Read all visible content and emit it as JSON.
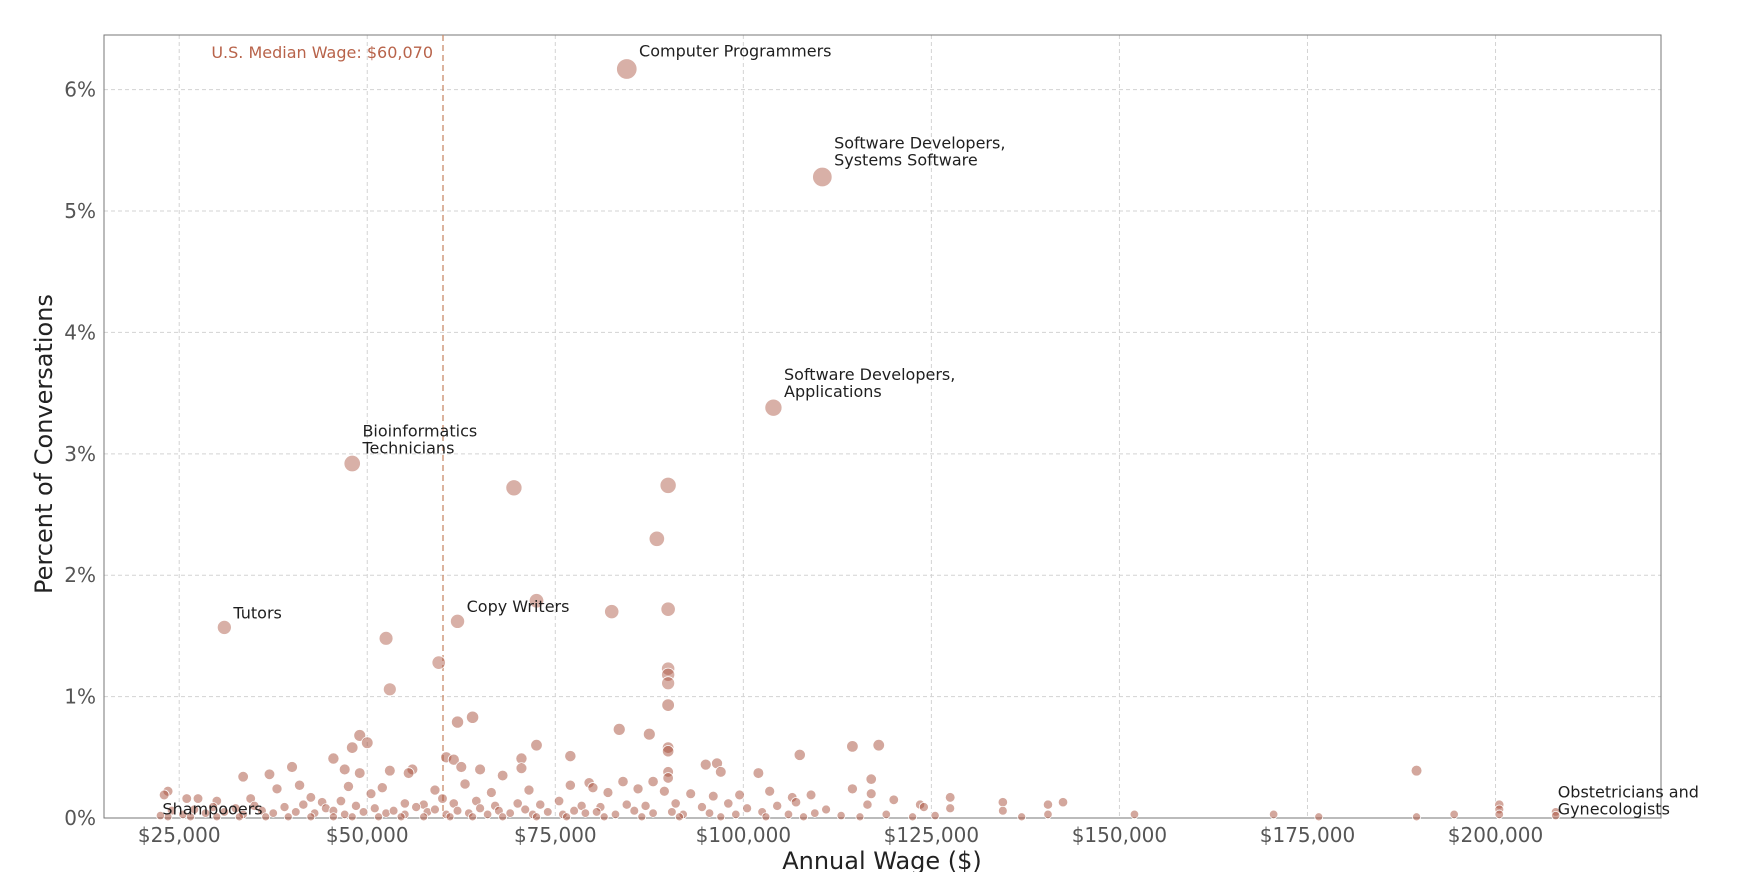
{
  "chart_data": {
    "type": "scatter",
    "xlabel": "Annual Wage ($)",
    "ylabel": "Percent of Conversations",
    "xlim": [
      15000,
      222000
    ],
    "ylim": [
      0,
      6.45
    ],
    "x_ticks": [
      25000,
      50000,
      75000,
      100000,
      125000,
      150000,
      175000,
      200000
    ],
    "x_tick_labels": [
      "$25,000",
      "$50,000",
      "$75,000",
      "$100,000",
      "$125,000",
      "$150,000",
      "$175,000",
      "$200,000"
    ],
    "y_ticks": [
      0,
      1,
      2,
      3,
      4,
      5,
      6
    ],
    "y_tick_labels": [
      "0%",
      "1%",
      "2%",
      "3%",
      "4%",
      "5%",
      "6%"
    ],
    "grid": true,
    "colors": {
      "point": "#a8503c",
      "median": "#c98b6a",
      "median_text": "#b8634a"
    },
    "median": {
      "x": 60070,
      "label": "U.S. Median Wage: $60,070"
    },
    "labeled_points": [
      {
        "x": 84500,
        "y": 6.17,
        "label": [
          "Computer Programmers"
        ]
      },
      {
        "x": 110500,
        "y": 5.28,
        "label": [
          "Software Developers,",
          "Systems Software"
        ]
      },
      {
        "x": 104000,
        "y": 3.38,
        "label": [
          "Software Developers,",
          "Applications"
        ]
      },
      {
        "x": 48000,
        "y": 2.92,
        "label": [
          "Bioinformatics",
          "Technicians"
        ]
      },
      {
        "x": 31000,
        "y": 1.57,
        "label": [
          "Tutors"
        ]
      },
      {
        "x": 62000,
        "y": 1.62,
        "label": [
          "Copy Writers"
        ]
      },
      {
        "x": 22500,
        "y": 0.02,
        "label": [
          "Shampooers"
        ]
      },
      {
        "x": 208000,
        "y": 0.02,
        "label": [
          "Obstetricians and",
          "Gynecologists"
        ]
      }
    ],
    "points": [
      [
        69500,
        2.72
      ],
      [
        90000,
        2.74
      ],
      [
        88500,
        2.3
      ],
      [
        72500,
        1.79
      ],
      [
        82500,
        1.7
      ],
      [
        90000,
        1.72
      ],
      [
        52500,
        1.48
      ],
      [
        59500,
        1.28
      ],
      [
        53000,
        1.06
      ],
      [
        90000,
        1.23
      ],
      [
        90000,
        1.18
      ],
      [
        90000,
        1.11
      ],
      [
        90000,
        0.93
      ],
      [
        62000,
        0.79
      ],
      [
        64000,
        0.83
      ],
      [
        83500,
        0.73
      ],
      [
        87500,
        0.69
      ],
      [
        49000,
        0.68
      ],
      [
        50000,
        0.62
      ],
      [
        72500,
        0.6
      ],
      [
        48000,
        0.58
      ],
      [
        90000,
        0.58
      ],
      [
        114500,
        0.59
      ],
      [
        118000,
        0.6
      ],
      [
        90000,
        0.55
      ],
      [
        107500,
        0.52
      ],
      [
        77000,
        0.51
      ],
      [
        60500,
        0.5
      ],
      [
        61500,
        0.48
      ],
      [
        70500,
        0.49
      ],
      [
        45500,
        0.49
      ],
      [
        95000,
        0.44
      ],
      [
        96500,
        0.45
      ],
      [
        62500,
        0.42
      ],
      [
        65000,
        0.4
      ],
      [
        70500,
        0.41
      ],
      [
        56000,
        0.4
      ],
      [
        53000,
        0.39
      ],
      [
        47000,
        0.4
      ],
      [
        40000,
        0.42
      ],
      [
        49000,
        0.37
      ],
      [
        90000,
        0.38
      ],
      [
        102000,
        0.37
      ],
      [
        97000,
        0.38
      ],
      [
        37000,
        0.36
      ],
      [
        33500,
        0.34
      ],
      [
        55500,
        0.37
      ],
      [
        68000,
        0.35
      ],
      [
        79500,
        0.29
      ],
      [
        88000,
        0.3
      ],
      [
        84000,
        0.3
      ],
      [
        117000,
        0.32
      ],
      [
        189500,
        0.39
      ],
      [
        90000,
        0.33
      ],
      [
        41000,
        0.27
      ],
      [
        47500,
        0.26
      ],
      [
        52000,
        0.25
      ],
      [
        59000,
        0.23
      ],
      [
        63000,
        0.28
      ],
      [
        66500,
        0.21
      ],
      [
        71500,
        0.23
      ],
      [
        77000,
        0.27
      ],
      [
        80000,
        0.25
      ],
      [
        82000,
        0.21
      ],
      [
        86000,
        0.24
      ],
      [
        89500,
        0.22
      ],
      [
        93000,
        0.2
      ],
      [
        96000,
        0.18
      ],
      [
        99500,
        0.19
      ],
      [
        103500,
        0.22
      ],
      [
        106500,
        0.17
      ],
      [
        109000,
        0.19
      ],
      [
        114500,
        0.24
      ],
      [
        117000,
        0.2
      ],
      [
        120000,
        0.15
      ],
      [
        123500,
        0.11
      ],
      [
        127500,
        0.17
      ],
      [
        134500,
        0.13
      ],
      [
        140500,
        0.11
      ],
      [
        142500,
        0.13
      ],
      [
        38000,
        0.24
      ],
      [
        34500,
        0.16
      ],
      [
        30000,
        0.14
      ],
      [
        27500,
        0.16
      ],
      [
        26000,
        0.16
      ],
      [
        23500,
        0.22
      ],
      [
        23000,
        0.19
      ],
      [
        42500,
        0.17
      ],
      [
        44000,
        0.13
      ],
      [
        46500,
        0.14
      ],
      [
        50500,
        0.2
      ],
      [
        55000,
        0.12
      ],
      [
        57500,
        0.11
      ],
      [
        60000,
        0.16
      ],
      [
        61500,
        0.12
      ],
      [
        64500,
        0.14
      ],
      [
        67000,
        0.1
      ],
      [
        70000,
        0.12
      ],
      [
        73000,
        0.11
      ],
      [
        75500,
        0.14
      ],
      [
        78500,
        0.1
      ],
      [
        81000,
        0.09
      ],
      [
        84500,
        0.11
      ],
      [
        87000,
        0.1
      ],
      [
        91000,
        0.12
      ],
      [
        94500,
        0.09
      ],
      [
        98000,
        0.12
      ],
      [
        100500,
        0.08
      ],
      [
        104500,
        0.1
      ],
      [
        107000,
        0.13
      ],
      [
        111000,
        0.07
      ],
      [
        116500,
        0.11
      ],
      [
        124000,
        0.09
      ],
      [
        127500,
        0.08
      ],
      [
        134500,
        0.06
      ],
      [
        140500,
        0.03
      ],
      [
        152000,
        0.03
      ],
      [
        170500,
        0.03
      ],
      [
        176500,
        0.01
      ],
      [
        189500,
        0.01
      ],
      [
        194500,
        0.03
      ],
      [
        200500,
        0.11
      ],
      [
        200500,
        0.07
      ],
      [
        200500,
        0.03
      ],
      [
        208000,
        0.05
      ],
      [
        24000,
        0.06
      ],
      [
        25500,
        0.03
      ],
      [
        27000,
        0.07
      ],
      [
        28500,
        0.04
      ],
      [
        29500,
        0.09
      ],
      [
        31000,
        0.05
      ],
      [
        32500,
        0.08
      ],
      [
        33500,
        0.03
      ],
      [
        35000,
        0.1
      ],
      [
        36000,
        0.06
      ],
      [
        37500,
        0.04
      ],
      [
        39000,
        0.09
      ],
      [
        40500,
        0.05
      ],
      [
        41500,
        0.11
      ],
      [
        43000,
        0.04
      ],
      [
        44500,
        0.08
      ],
      [
        45500,
        0.06
      ],
      [
        47000,
        0.03
      ],
      [
        48500,
        0.1
      ],
      [
        49500,
        0.05
      ],
      [
        51000,
        0.08
      ],
      [
        52500,
        0.04
      ],
      [
        53500,
        0.06
      ],
      [
        55000,
        0.03
      ],
      [
        56500,
        0.09
      ],
      [
        58000,
        0.05
      ],
      [
        59000,
        0.07
      ],
      [
        60500,
        0.03
      ],
      [
        62000,
        0.06
      ],
      [
        63500,
        0.04
      ],
      [
        65000,
        0.08
      ],
      [
        66000,
        0.03
      ],
      [
        67500,
        0.06
      ],
      [
        69000,
        0.04
      ],
      [
        71000,
        0.07
      ],
      [
        72000,
        0.03
      ],
      [
        74000,
        0.05
      ],
      [
        76000,
        0.03
      ],
      [
        77500,
        0.06
      ],
      [
        79000,
        0.04
      ],
      [
        80500,
        0.05
      ],
      [
        83000,
        0.03
      ],
      [
        85500,
        0.06
      ],
      [
        88000,
        0.04
      ],
      [
        90500,
        0.05
      ],
      [
        92000,
        0.03
      ],
      [
        95500,
        0.04
      ],
      [
        99000,
        0.03
      ],
      [
        102500,
        0.05
      ],
      [
        106000,
        0.03
      ],
      [
        109500,
        0.04
      ],
      [
        113000,
        0.02
      ],
      [
        119000,
        0.03
      ],
      [
        125500,
        0.02
      ],
      [
        23500,
        0.01
      ],
      [
        26500,
        0.01
      ],
      [
        30000,
        0.01
      ],
      [
        33000,
        0.01
      ],
      [
        36500,
        0.01
      ],
      [
        39500,
        0.01
      ],
      [
        42500,
        0.01
      ],
      [
        45500,
        0.01
      ],
      [
        48000,
        0.01
      ],
      [
        51500,
        0.01
      ],
      [
        54500,
        0.01
      ],
      [
        57500,
        0.01
      ],
      [
        61000,
        0.01
      ],
      [
        64000,
        0.01
      ],
      [
        68000,
        0.01
      ],
      [
        72500,
        0.01
      ],
      [
        76500,
        0.01
      ],
      [
        81500,
        0.01
      ],
      [
        86500,
        0.01
      ],
      [
        91500,
        0.01
      ],
      [
        97000,
        0.01
      ],
      [
        103000,
        0.01
      ],
      [
        108000,
        0.01
      ],
      [
        115500,
        0.01
      ],
      [
        122500,
        0.01
      ],
      [
        137000,
        0.01
      ]
    ]
  }
}
